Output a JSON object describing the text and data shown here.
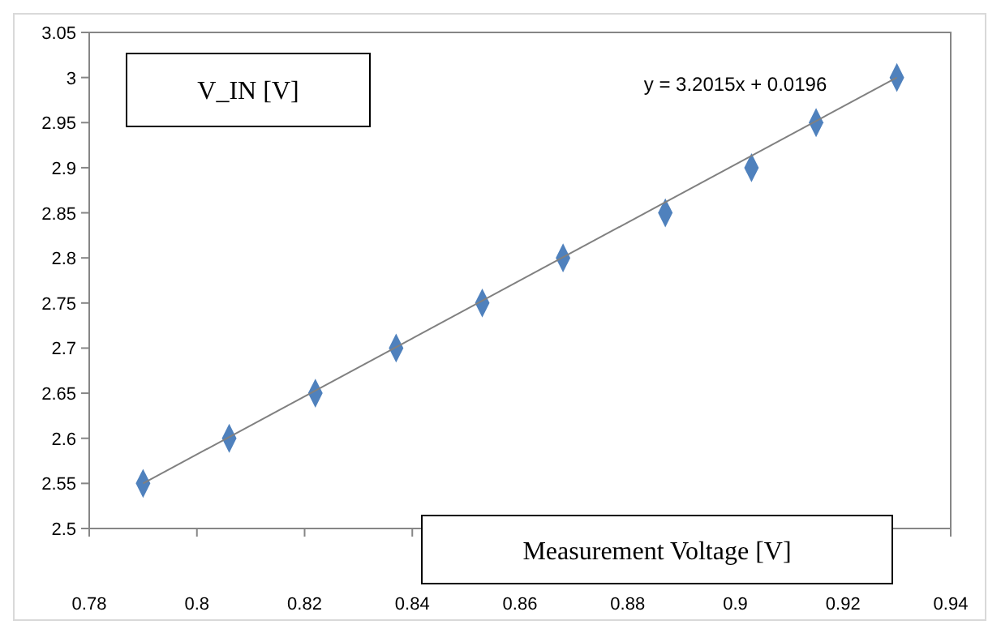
{
  "chart_data": {
    "type": "scatter",
    "xlabel": "Measurement Voltage [V]",
    "ylabel": "V_IN [V]",
    "annotations": [
      "y = 3.2015x + 0.0196"
    ],
    "x": [
      0.79,
      0.806,
      0.822,
      0.837,
      0.853,
      0.868,
      0.887,
      0.903,
      0.915,
      0.93
    ],
    "series": [
      {
        "color": "#4f81bd",
        "marker": "diamond",
        "values": [
          2.55,
          2.6,
          2.65,
          2.7,
          2.75,
          2.8,
          2.85,
          2.9,
          2.95,
          3.0
        ]
      },
      {
        "type": "line",
        "color": "#808080",
        "x": [
          0.79,
          0.93
        ],
        "values": [
          2.55,
          3.0
        ],
        "marker": "none"
      }
    ],
    "xlim": [
      0.78,
      0.94
    ],
    "xticks": [
      0.78,
      0.8,
      0.82,
      0.84,
      0.86,
      0.88,
      0.9,
      0.92,
      0.94
    ],
    "ylim": [
      2.5,
      3.05
    ],
    "yticks": [
      2.5,
      2.55,
      2.6,
      2.65,
      2.7,
      2.75,
      2.8,
      2.85,
      2.9,
      2.95,
      3,
      3.05
    ],
    "grid": false
  }
}
